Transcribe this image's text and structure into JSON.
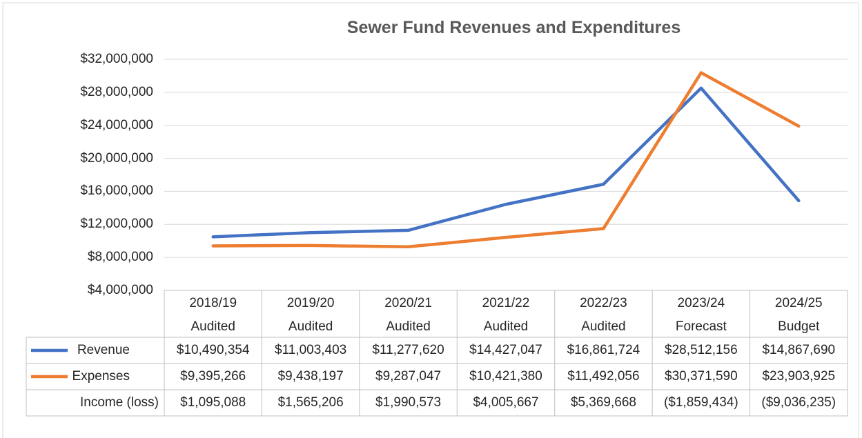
{
  "chart_data": {
    "type": "line",
    "title": "Sewer Fund Revenues and Expenditures",
    "categories": [
      "2018/19\nAudited",
      "2019/20\nAudited",
      "2020/21\nAudited",
      "2021/22\nAudited",
      "2022/23\nAudited",
      "2023/24\nForecast",
      "2024/25\nBudget"
    ],
    "series": [
      {
        "name": "Revenue",
        "color": "#4472c4",
        "values": [
          10490354,
          11003403,
          11277620,
          14427047,
          16861724,
          28512156,
          14867690
        ],
        "value_labels": [
          "$10,490,354",
          "$11,003,403",
          "$11,277,620",
          "$14,427,047",
          "$16,861,724",
          "$28,512,156",
          "$14,867,690"
        ]
      },
      {
        "name": "Expenses",
        "color": "#ed7d31",
        "values": [
          9395266,
          9438197,
          9287047,
          10421380,
          11492056,
          30371590,
          23903925
        ],
        "value_labels": [
          "$9,395,266",
          "$9,438,197",
          "$9,287,047",
          "$10,421,380",
          "$11,492,056",
          "$30,371,590",
          "$23,903,925"
        ]
      }
    ],
    "income": {
      "name": "Income (loss)",
      "values": [
        1095088,
        1565206,
        1990573,
        4005667,
        5369668,
        -1859434,
        -9036235
      ],
      "value_labels": [
        "$1,095,088",
        "$1,565,206",
        "$1,990,573",
        "$4,005,667",
        "$5,369,668",
        "($1,859,434)",
        "($9,036,235)"
      ]
    },
    "ylim": [
      4000000,
      32000000
    ],
    "yticks": [
      {
        "value": 4000000,
        "label": "$4,000,000"
      },
      {
        "value": 8000000,
        "label": "$8,000,000"
      },
      {
        "value": 12000000,
        "label": "$12,000,000"
      },
      {
        "value": 16000000,
        "label": "$16,000,000"
      },
      {
        "value": 20000000,
        "label": "$20,000,000"
      },
      {
        "value": 24000000,
        "label": "$24,000,000"
      },
      {
        "value": 28000000,
        "label": "$28,000,000"
      },
      {
        "value": 32000000,
        "label": "$32,000,000"
      }
    ],
    "grid": true
  }
}
